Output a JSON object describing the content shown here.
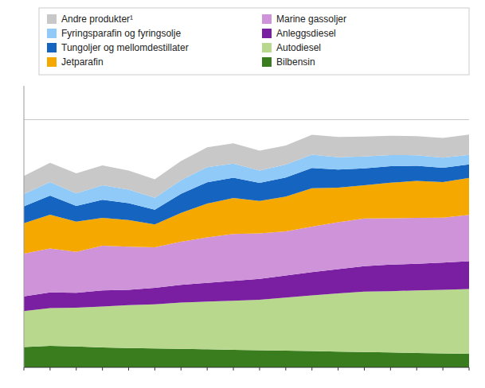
{
  "chart_data": {
    "type": "area",
    "stacked": true,
    "categories": [
      null,
      null,
      null,
      null,
      null,
      null,
      null,
      null,
      null,
      null,
      null,
      null,
      null,
      null,
      null,
      null,
      null,
      null
    ],
    "series": [
      {
        "name": "Bilbensin",
        "color": "#3a7d1e",
        "values": [
          90,
          95,
          93,
          88,
          86,
          84,
          82,
          80,
          78,
          76,
          74,
          72,
          70,
          68,
          66,
          64,
          62,
          60
        ]
      },
      {
        "name": "Autodiesel",
        "color": "#b8d98d",
        "values": [
          160,
          168,
          172,
          182,
          190,
          196,
          206,
          212,
          218,
          224,
          236,
          248,
          258,
          268,
          272,
          278,
          282,
          288
        ]
      },
      {
        "name": "Anleggsdiesel",
        "color": "#7b1fa2",
        "values": [
          65,
          70,
          66,
          72,
          68,
          73,
          78,
          83,
          88,
          93,
          98,
          103,
          108,
          113,
          118,
          118,
          121,
          123
        ]
      },
      {
        "name": "Marine gassoljer",
        "color": "#ce93d8",
        "values": [
          190,
          195,
          182,
          198,
          192,
          180,
          192,
          202,
          208,
          202,
          196,
          202,
          208,
          212,
          206,
          204,
          200,
          206
        ]
      },
      {
        "name": "Jetparafin",
        "color": "#f5a800",
        "values": [
          135,
          150,
          134,
          124,
          118,
          102,
          128,
          150,
          160,
          144,
          154,
          170,
          154,
          148,
          158,
          164,
          158,
          164
        ]
      },
      {
        "name": "Tungoljer og mellomdestillater",
        "color": "#1565c0",
        "values": [
          75,
          85,
          70,
          80,
          75,
          65,
          85,
          95,
          90,
          80,
          85,
          90,
          80,
          75,
          73,
          67,
          63,
          60
        ]
      },
      {
        "name": "Fyringsparafin og fyringsolje",
        "color": "#90caf9",
        "values": [
          55,
          60,
          55,
          65,
          60,
          53,
          60,
          67,
          63,
          55,
          57,
          60,
          55,
          53,
          50,
          47,
          45,
          43
        ]
      },
      {
        "name": "Andre produkter¹",
        "color": "#c8c8c8",
        "values": [
          80,
          85,
          90,
          88,
          85,
          82,
          85,
          88,
          90,
          88,
          85,
          88,
          90,
          88,
          85,
          85,
          88,
          90
        ]
      }
    ],
    "ylim": [
      0,
      1250
    ],
    "yticks": [
      1100
    ],
    "grid": true,
    "tick_labels": false,
    "legend": "upper right"
  }
}
